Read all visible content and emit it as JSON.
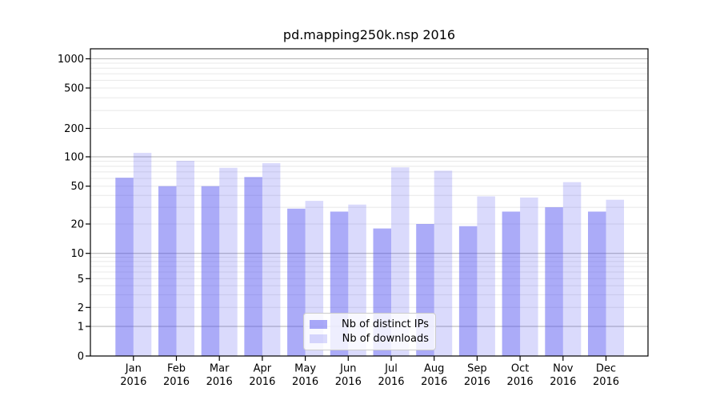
{
  "figure": {
    "title": "pd.mapping250k.nsp 2016"
  },
  "chart_data": {
    "type": "bar",
    "title": "pd.mapping250k.nsp 2016",
    "months": [
      "Jan",
      "Feb",
      "Mar",
      "Apr",
      "May",
      "Jun",
      "Jul",
      "Aug",
      "Sep",
      "Oct",
      "Nov",
      "Dec"
    ],
    "year_label": "2016",
    "categories": [
      "Jan 2016",
      "Feb 2016",
      "Mar 2016",
      "Apr 2016",
      "May 2016",
      "Jun 2016",
      "Jul 2016",
      "Aug 2016",
      "Sep 2016",
      "Oct 2016",
      "Nov 2016",
      "Dec 2016"
    ],
    "series": [
      {
        "name": "Nb of distinct IPs",
        "values": [
          61,
          50,
          50,
          62,
          29,
          27,
          18,
          20,
          19,
          27,
          30,
          27
        ]
      },
      {
        "name": "Nb of downloads",
        "values": [
          110,
          91,
          77,
          86,
          35,
          32,
          78,
          72,
          39,
          38,
          55,
          36
        ]
      }
    ],
    "yscale": "symlog-like",
    "yticks": [
      0,
      1,
      2,
      5,
      10,
      20,
      50,
      100,
      200,
      500,
      1000
    ],
    "ylim": [
      0,
      1270
    ],
    "grid": true,
    "legend_position": "lower center"
  },
  "colors": {
    "distinct_ips_bar": "rgba(80,80,240,0.48)",
    "downloads_bar": "rgba(80,80,240,0.21)",
    "distinct_ips_hex_on_white": "#aaaaf7",
    "downloads_hex_on_white": "#dcdcf9",
    "grid_major": "#b0b0b0",
    "grid_minor": "#e8e8e8",
    "axis": "#000000",
    "legend_border": "#cccccc"
  }
}
